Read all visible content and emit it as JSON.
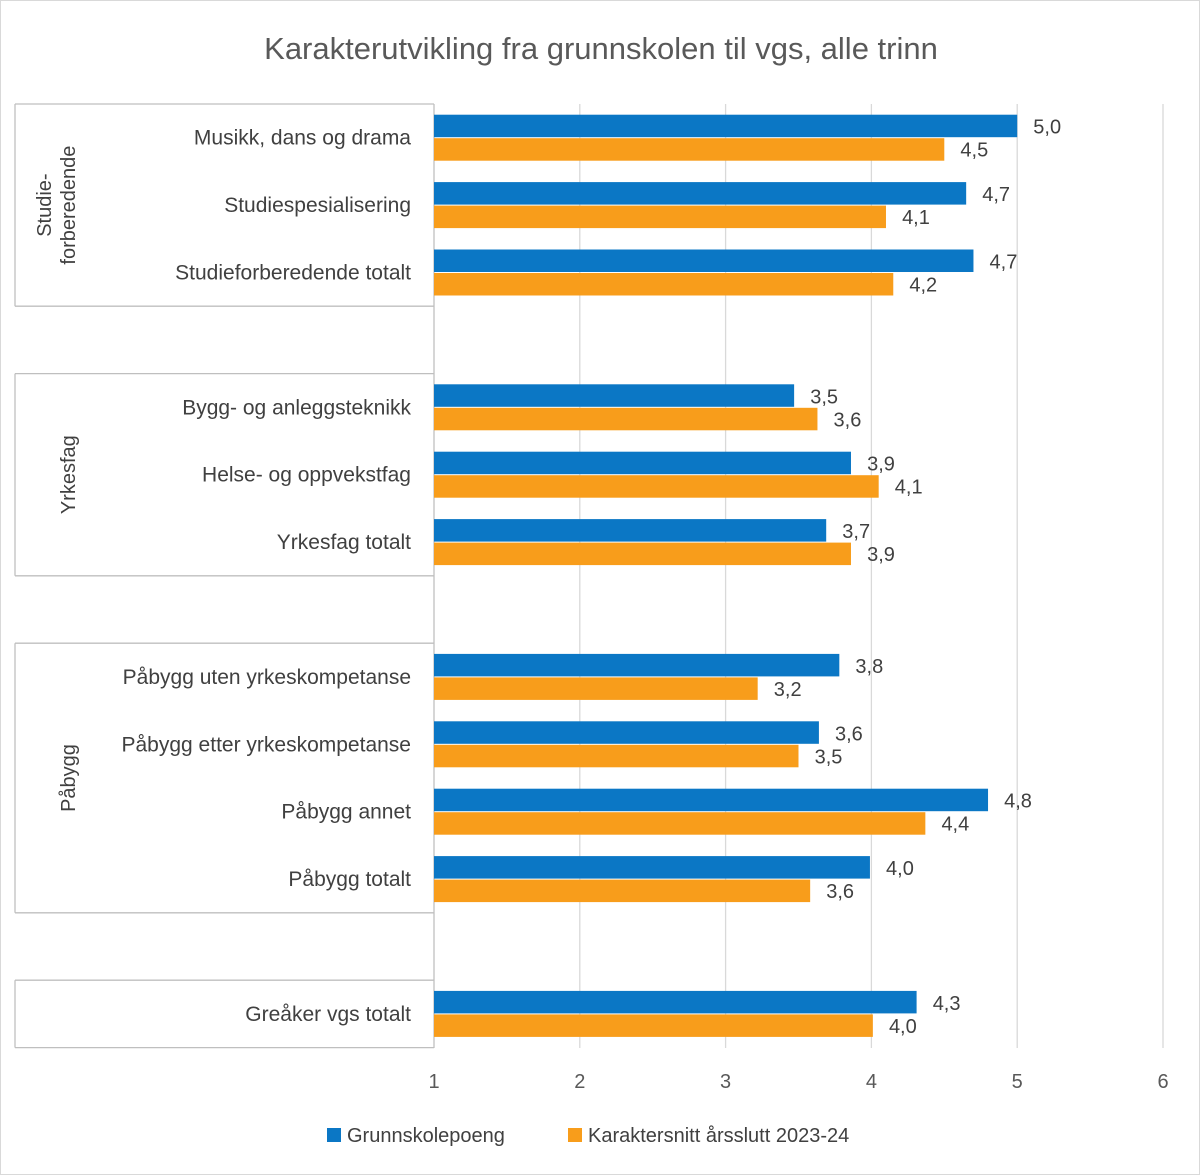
{
  "chart_data": {
    "type": "bar",
    "orientation": "horizontal",
    "title": "Karakterutvikling fra grunnskolen til vgs, alle trinn",
    "xlim": [
      1,
      6
    ],
    "x_ticks": [
      "1",
      "2",
      "3",
      "4",
      "5",
      "6"
    ],
    "grid": true,
    "legend_position": "bottom",
    "groups": [
      {
        "label_lines": [
          "Studie-",
          "forberedende"
        ],
        "categories": [
          {
            "label": "Musikk, dans og drama",
            "values": [
              5.0,
              4.5
            ],
            "labels": [
              "5,0",
              "4,5"
            ]
          },
          {
            "label": "Studiespesialisering",
            "values": [
              4.65,
              4.1
            ],
            "labels": [
              "4,7",
              "4,1"
            ]
          },
          {
            "label": "Studieforberedende totalt",
            "values": [
              4.7,
              4.15
            ],
            "labels": [
              "4,7",
              "4,2"
            ]
          }
        ]
      },
      {
        "label_lines": [
          "Yrkesfag"
        ],
        "categories": [
          {
            "label": "Bygg- og anleggsteknikk",
            "values": [
              3.47,
              3.63
            ],
            "labels": [
              "3,5",
              "3,6"
            ]
          },
          {
            "label": "Helse- og oppvekstfag",
            "values": [
              3.86,
              4.05
            ],
            "labels": [
              "3,9",
              "4,1"
            ]
          },
          {
            "label": "Yrkesfag totalt",
            "values": [
              3.69,
              3.86
            ],
            "labels": [
              "3,7",
              "3,9"
            ]
          }
        ]
      },
      {
        "label_lines": [
          "Påbygg"
        ],
        "categories": [
          {
            "label": "Påbygg uten yrkeskompetanse",
            "values": [
              3.78,
              3.22
            ],
            "labels": [
              "3,8",
              "3,2"
            ]
          },
          {
            "label": "Påbygg etter yrkeskompetanse",
            "values": [
              3.64,
              3.5
            ],
            "labels": [
              "3,6",
              "3,5"
            ]
          },
          {
            "label": "Påbygg annet",
            "values": [
              4.8,
              4.37
            ],
            "labels": [
              "4,8",
              "4,4"
            ]
          },
          {
            "label": "Påbygg totalt",
            "values": [
              3.99,
              3.58
            ],
            "labels": [
              "4,0",
              "3,6"
            ]
          }
        ]
      },
      {
        "label_lines": [],
        "categories": [
          {
            "label": "Greåker vgs totalt",
            "values": [
              4.31,
              4.01
            ],
            "labels": [
              "4,3",
              "4,0"
            ]
          }
        ]
      }
    ],
    "series": [
      {
        "name": "Grunnskolepoeng",
        "color": "#0B77C5"
      },
      {
        "name": "Karaktersnitt årsslutt 2023-24",
        "color": "#F89D1B"
      }
    ]
  }
}
